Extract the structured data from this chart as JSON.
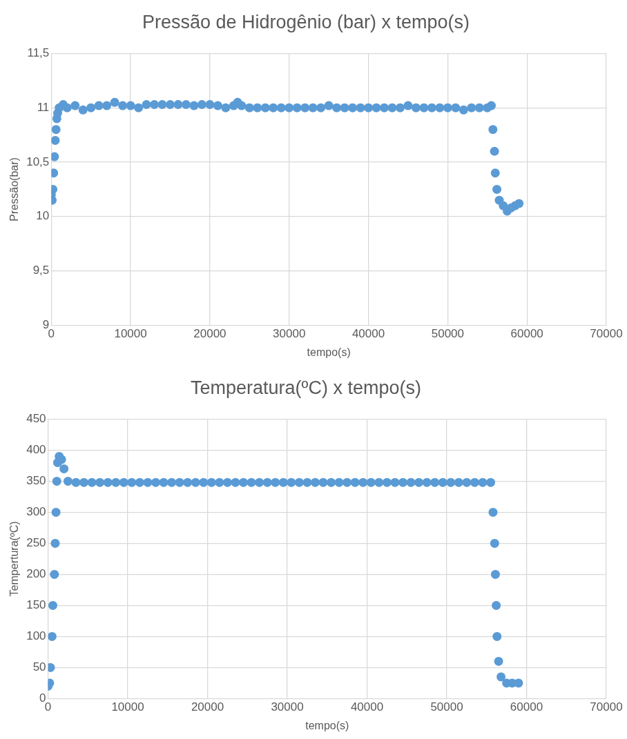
{
  "chart_data": [
    {
      "type": "scatter",
      "title": "Pressão de Hidrogênio (bar) x tempo(s)",
      "xlabel": "tempo(s)",
      "ylabel": "Pressão(bar)",
      "marker": "circle",
      "grid": true,
      "legend": false,
      "xlim": [
        0,
        70000
      ],
      "xticks": [
        0,
        10000,
        20000,
        30000,
        40000,
        50000,
        60000,
        70000
      ],
      "ylim": [
        9,
        11.5
      ],
      "yticks": [
        9,
        {
          "value": 9.5,
          "label": "9,5"
        },
        10,
        {
          "value": 10.5,
          "label": "10,5"
        },
        11,
        {
          "value": 11.5,
          "label": "11,5"
        }
      ],
      "series": [
        {
          "color": "#5b9bd5",
          "x": [
            0,
            100,
            200,
            300,
            400,
            500,
            600,
            700,
            800,
            1000,
            1500,
            2000,
            3000,
            4000,
            5000,
            6000,
            7000,
            8000,
            9000,
            10000,
            11000,
            12000,
            13000,
            14000,
            15000,
            16000,
            17000,
            18000,
            19000,
            20000,
            21000,
            22000,
            23000,
            23500,
            24000,
            25000,
            26000,
            27000,
            28000,
            29000,
            30000,
            31000,
            32000,
            33000,
            34000,
            35000,
            36000,
            37000,
            38000,
            39000,
            40000,
            41000,
            42000,
            43000,
            44000,
            45000,
            46000,
            47000,
            48000,
            49000,
            50000,
            51000,
            52000,
            53000,
            54000,
            55000,
            55500,
            55700,
            55900,
            56000,
            56200,
            56500,
            57000,
            57500,
            58000,
            58500,
            59000
          ],
          "values": [
            10.2,
            10.15,
            10.25,
            10.4,
            10.55,
            10.7,
            10.8,
            10.9,
            10.95,
            11,
            11.03,
            11,
            11.02,
            10.98,
            11,
            11.02,
            11.02,
            11.05,
            11.02,
            11.02,
            11,
            11.03,
            11.03,
            11.03,
            11.03,
            11.03,
            11.03,
            11.02,
            11.03,
            11.03,
            11.02,
            11,
            11.02,
            11.05,
            11.02,
            11,
            11,
            11,
            11,
            11,
            11,
            11,
            11,
            11,
            11,
            11.02,
            11,
            11,
            11,
            11,
            11,
            11,
            11,
            11,
            11,
            11.02,
            11,
            11,
            11,
            11,
            11,
            11,
            10.98,
            11,
            11,
            11,
            11.02,
            10.8,
            10.6,
            10.4,
            10.25,
            10.15,
            10.1,
            10.05,
            10.08,
            10.1,
            10.12
          ]
        }
      ]
    },
    {
      "type": "scatter",
      "title": "Temperatura(ºC) x tempo(s)",
      "xlabel": "tempo(s)",
      "ylabel": "Tempertura(ºC)",
      "marker": "circle",
      "grid": true,
      "legend": false,
      "xlim": [
        0,
        70000
      ],
      "xticks": [
        0,
        10000,
        20000,
        30000,
        40000,
        50000,
        60000,
        70000
      ],
      "ylim": [
        0,
        450
      ],
      "yticks": [
        0,
        50,
        100,
        150,
        200,
        250,
        300,
        350,
        400,
        450
      ],
      "series": [
        {
          "color": "#5b9bd5",
          "x": [
            0,
            200,
            300,
            500,
            600,
            800,
            900,
            1000,
            1100,
            1200,
            1400,
            1700,
            2000,
            2500,
            3500,
            4500,
            5500,
            6500,
            7500,
            8500,
            9500,
            10500,
            11500,
            12500,
            13500,
            14500,
            15500,
            16500,
            17500,
            18500,
            19500,
            20500,
            21500,
            22500,
            23500,
            24500,
            25500,
            26500,
            27500,
            28500,
            29500,
            30500,
            31500,
            32500,
            33500,
            34500,
            35500,
            36500,
            37500,
            38500,
            39500,
            40500,
            41500,
            42500,
            43500,
            44500,
            45500,
            46500,
            47500,
            48500,
            49500,
            50500,
            51500,
            52500,
            53500,
            54500,
            55500,
            55800,
            56000,
            56100,
            56200,
            56300,
            56500,
            56800,
            57500,
            58200,
            59000
          ],
          "values": [
            20,
            25,
            50,
            100,
            150,
            200,
            250,
            300,
            350,
            380,
            390,
            385,
            370,
            350,
            348,
            348,
            348,
            348,
            348,
            348,
            348,
            348,
            348,
            348,
            348,
            348,
            348,
            348,
            348,
            348,
            348,
            348,
            348,
            348,
            348,
            348,
            348,
            348,
            348,
            348,
            348,
            348,
            348,
            348,
            348,
            348,
            348,
            348,
            348,
            348,
            348,
            348,
            348,
            348,
            348,
            348,
            348,
            348,
            348,
            348,
            348,
            348,
            348,
            348,
            348,
            348,
            348,
            300,
            250,
            200,
            150,
            100,
            60,
            35,
            25,
            25,
            25
          ]
        }
      ]
    }
  ]
}
